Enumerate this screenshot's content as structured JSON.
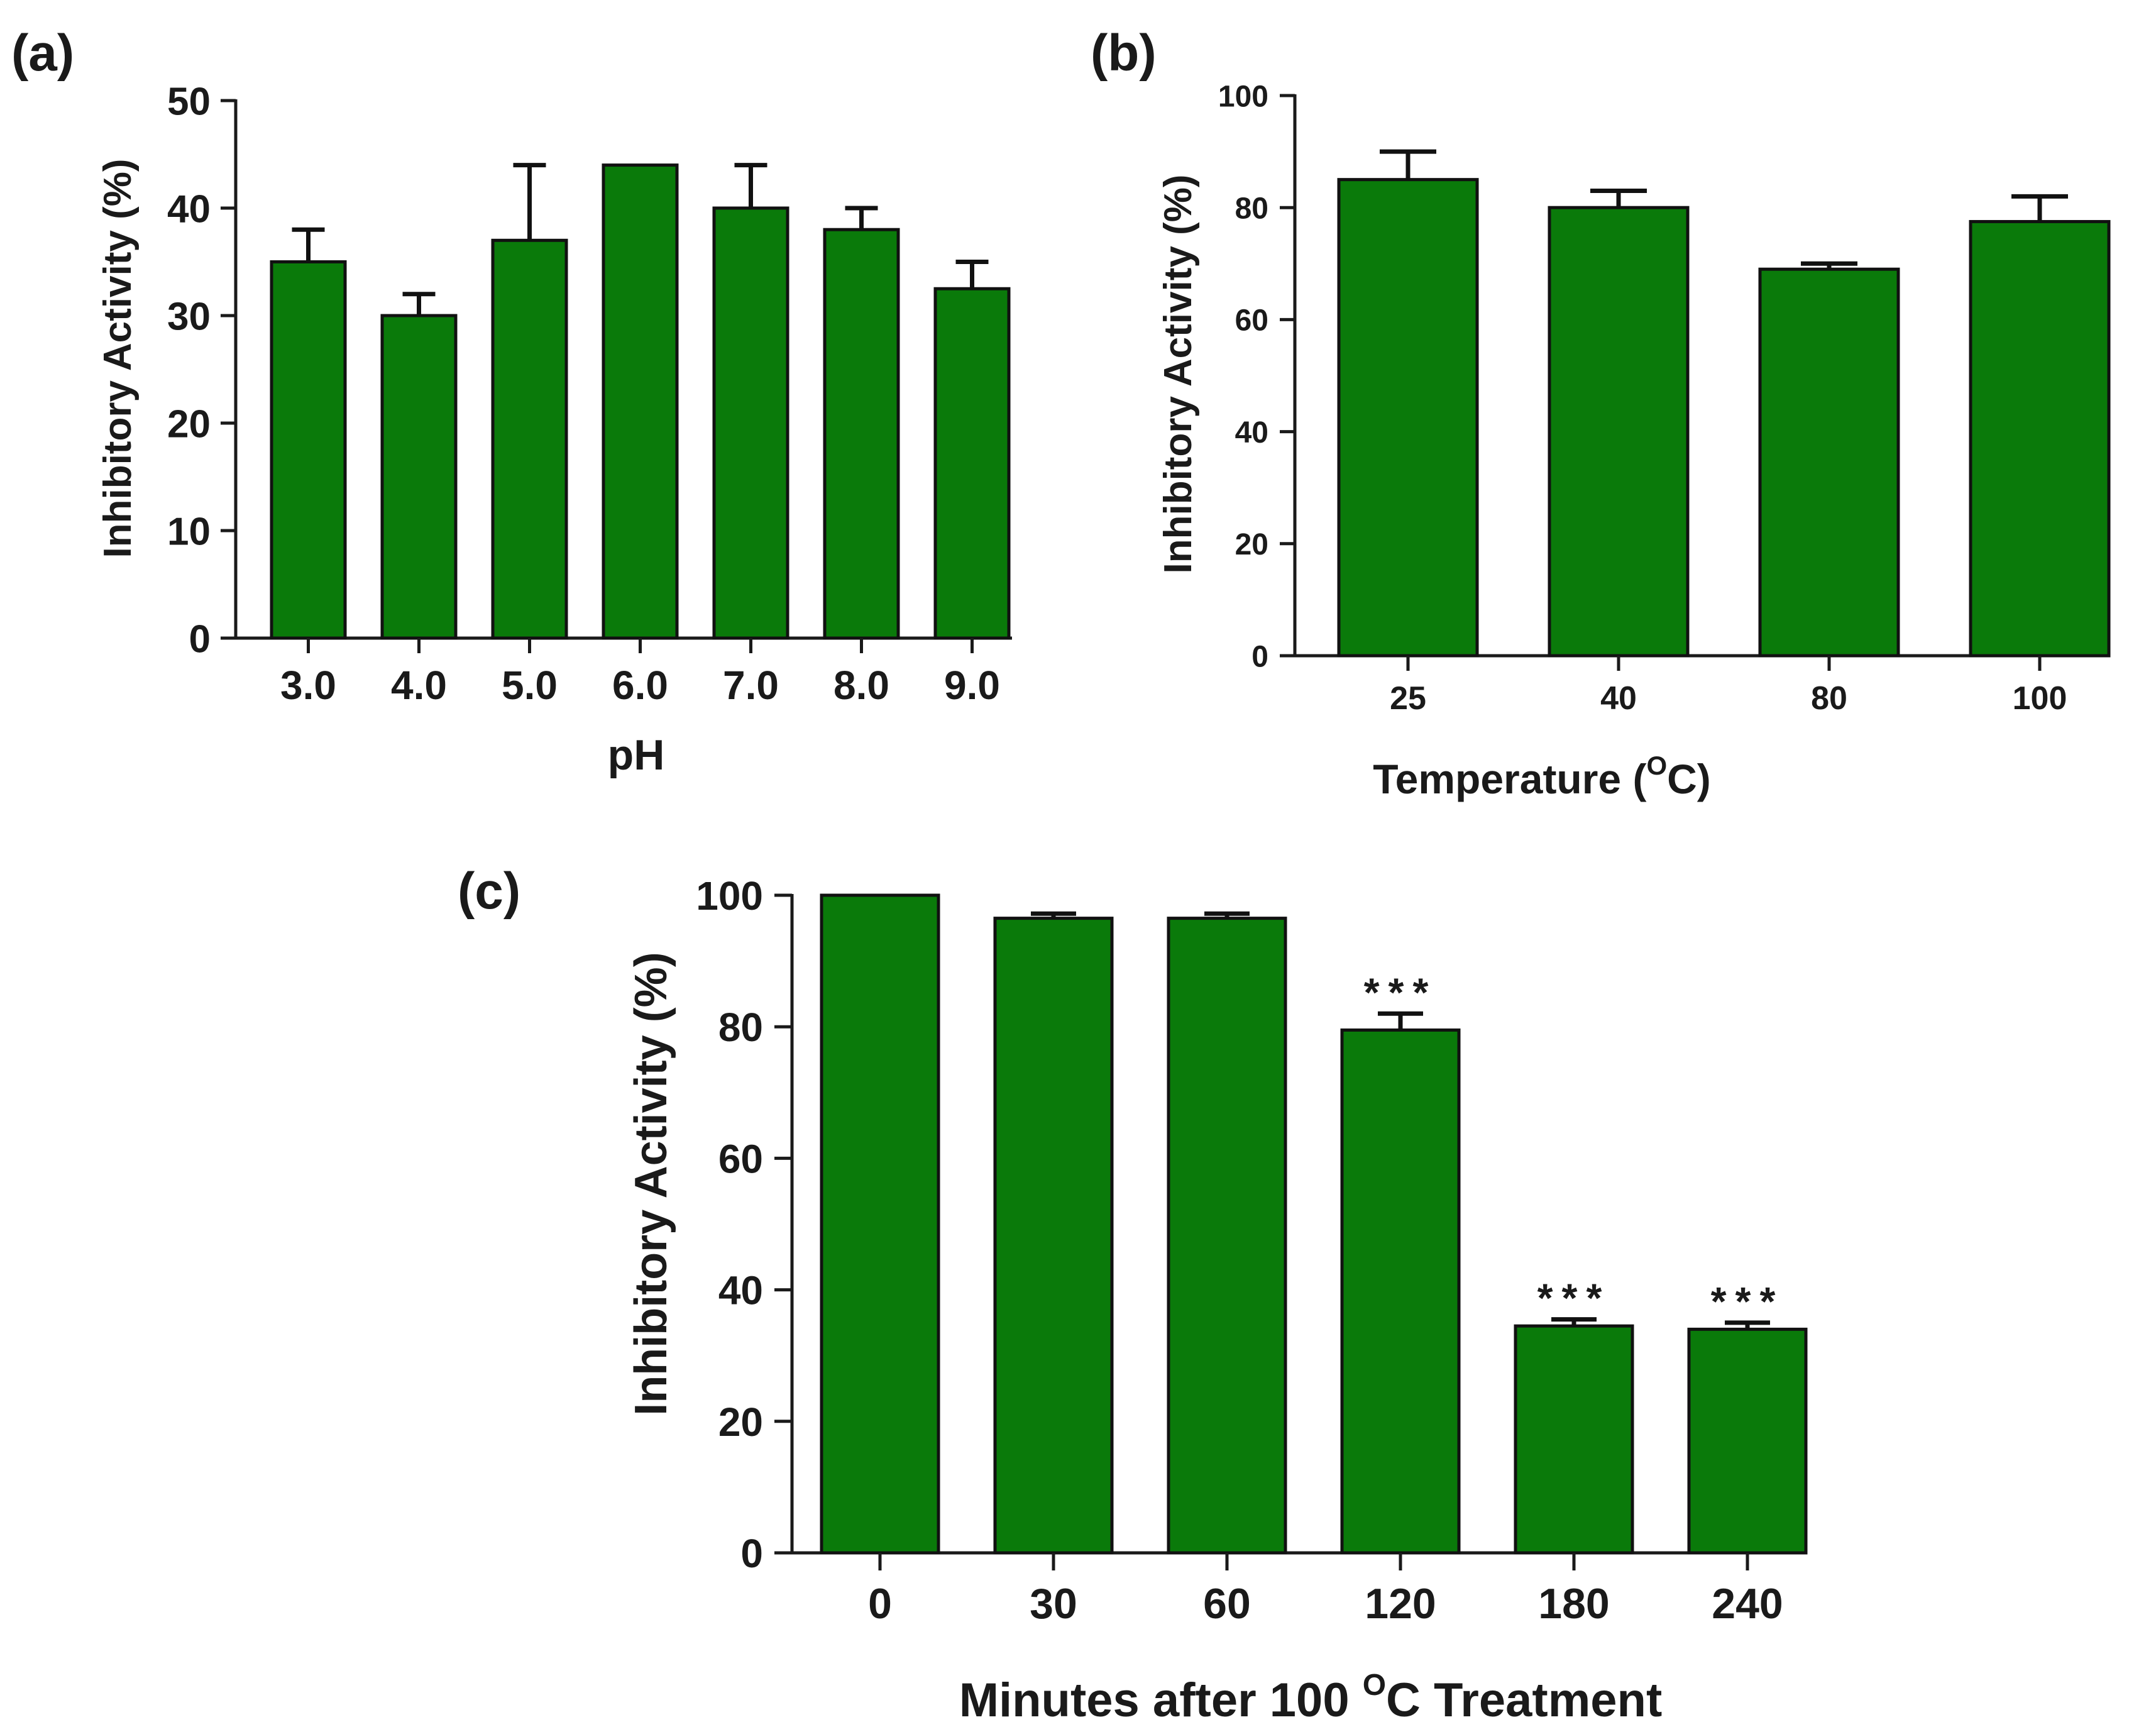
{
  "colors": {
    "bar_fill": "#0a7a0a",
    "bar_stroke": "#111111",
    "axis": "#1a1a1a",
    "text": "#1a1a1a"
  },
  "chart_data": [
    {
      "panel_label": "(a)",
      "type": "bar",
      "title": "",
      "xlabel": "pH",
      "ylabel": "Inhibitory Activity (%)",
      "ylim": [
        0,
        50
      ],
      "yticks": [
        "0",
        "10",
        "20",
        "30",
        "40",
        "50"
      ],
      "categories": [
        "3.0",
        "4.0",
        "5.0",
        "6.0",
        "7.0",
        "8.0",
        "9.0"
      ],
      "values": [
        35,
        30,
        37,
        44,
        40,
        38,
        32.5
      ],
      "errors": [
        3,
        2,
        7,
        0,
        4,
        2,
        2.5
      ],
      "annotations": [
        "",
        "",
        "",
        "",
        "",
        "",
        ""
      ],
      "grid": false
    },
    {
      "panel_label": "(b)",
      "type": "bar",
      "title": "",
      "xlabel_main": "Temperature (",
      "xlabel_sup": "O",
      "xlabel_tail": "C)",
      "ylabel": "Inhibitory Activity (%)",
      "ylim": [
        0,
        100
      ],
      "yticks": [
        "0",
        "20",
        "40",
        "60",
        "80",
        "100"
      ],
      "categories": [
        "25",
        "40",
        "80",
        "100"
      ],
      "values": [
        85,
        80,
        69,
        77.5
      ],
      "errors": [
        5,
        3,
        1,
        4.5
      ],
      "annotations": [
        "",
        "",
        "",
        ""
      ],
      "grid": false
    },
    {
      "panel_label": "(c)",
      "type": "bar",
      "title": "",
      "xlabel_main": "Minutes after 100 ",
      "xlabel_sup": "O",
      "xlabel_tail": "C Treatment",
      "ylabel": "Inhibitory Activity (%)",
      "ylim": [
        0,
        100
      ],
      "yticks": [
        "0",
        "20",
        "40",
        "60",
        "80",
        "100"
      ],
      "categories": [
        "0",
        "30",
        "60",
        "120",
        "180",
        "240"
      ],
      "values": [
        100,
        96.5,
        96.5,
        79.5,
        34.5,
        34
      ],
      "errors": [
        0,
        0.7,
        0.7,
        2.5,
        1,
        1
      ],
      "annotations": [
        "",
        "",
        "",
        "***",
        "***",
        "***"
      ],
      "grid": false
    }
  ]
}
